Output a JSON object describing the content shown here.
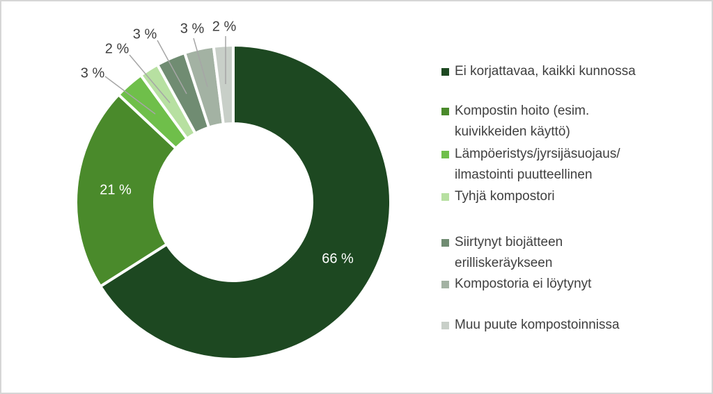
{
  "chart_data": {
    "type": "pie",
    "subtype": "donut",
    "title": "",
    "unit": "%",
    "legend_position": "right",
    "donut_hole_ratio": 0.5,
    "start_angle_deg": 0,
    "direction": "clockwise",
    "categories": [
      "Ei korjattavaa, kaikki kunnossa",
      "Kompostin hoito (esim. kuivikkeiden käyttö)",
      "Lämpöeristys/jyrsijäsuojaus/ilmastointi puutteellinen",
      "Tyhjä kompostori",
      "Siirtynyt biojätteen erilliskeräykseen",
      "Kompostoria ei löytynyt",
      "Muu puute kompostoinnissa"
    ],
    "values": [
      66,
      21,
      3,
      2,
      3,
      3,
      2
    ],
    "colors": [
      "#1d4821",
      "#4a8a2b",
      "#6fbf4a",
      "#b7e0a1",
      "#708c72",
      "#a3b2a3",
      "#c8cfc8"
    ],
    "data_labels": [
      "66 %",
      "21 %",
      "3 %",
      "2 %",
      "3 %",
      "3 %",
      "2 %"
    ],
    "legend_display": [
      "Ei korjattavaa, kaikki kunnossa",
      "Kompostin hoito (esim.\nkuivikkeiden käyttö)",
      "Lämpöeristys/jyrsijäsuojaus/\nilmastointi puutteellinen",
      "Tyhjä kompostori",
      "Siirtynyt biojätteen\nerilliskeräykseen",
      "Kompostoria ei löytynyt",
      "Muu puute kompostoinnissa"
    ],
    "leader_line_color": "#a6a6a6",
    "label_color_outside": "#404040",
    "label_color_inside": "#ffffff",
    "slice_border_color": "#ffffff"
  }
}
